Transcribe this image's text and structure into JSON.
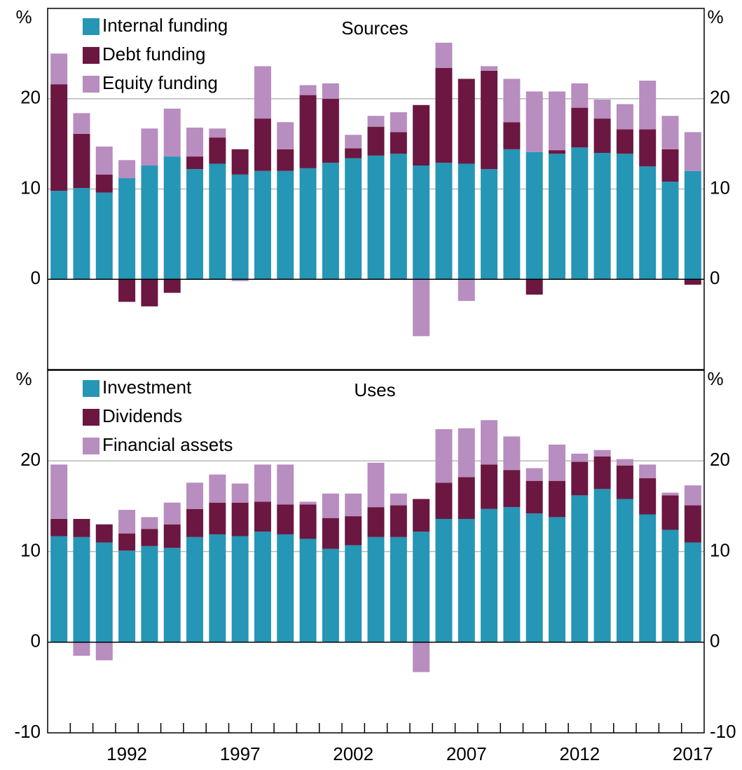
{
  "chart_data": [
    {
      "type": "bar",
      "stacked": true,
      "title": "Sources",
      "y_label": "%",
      "ylim": [
        -10,
        30
      ],
      "yticks": [
        0,
        10,
        20
      ],
      "grid": true,
      "legend": "top-left",
      "series": [
        {
          "name": "Internal funding",
          "color": "#2596b5",
          "values": [
            9.8,
            10.1,
            9.6,
            11.2,
            12.6,
            13.6,
            12.2,
            12.8,
            11.6,
            12.0,
            12.0,
            12.3,
            12.9,
            13.4,
            13.7,
            13.9,
            12.6,
            12.9,
            12.8,
            12.2,
            14.4,
            14.1,
            13.9,
            14.6,
            14.0,
            13.9,
            12.5,
            10.8,
            12.0
          ]
        },
        {
          "name": "Debt funding",
          "color": "#6b1741",
          "values": [
            11.8,
            6.0,
            2.0,
            -2.5,
            -3.0,
            -1.5,
            1.4,
            2.9,
            2.8,
            5.8,
            2.4,
            8.1,
            7.1,
            1.1,
            3.2,
            2.4,
            6.7,
            10.5,
            9.4,
            10.9,
            3.0,
            -1.7,
            0.4,
            4.4,
            3.8,
            2.7,
            4.1,
            3.6,
            -0.6
          ]
        },
        {
          "name": "Equity funding",
          "color": "#b88dbf",
          "values": [
            3.4,
            2.3,
            3.1,
            2.0,
            4.1,
            5.3,
            3.2,
            1.0,
            -0.2,
            5.8,
            3.0,
            1.1,
            1.7,
            1.5,
            1.2,
            2.2,
            -6.3,
            2.8,
            -2.4,
            0.5,
            4.8,
            6.7,
            6.5,
            2.7,
            2.1,
            2.8,
            5.4,
            3.7,
            4.3
          ]
        }
      ]
    },
    {
      "type": "bar",
      "stacked": true,
      "title": "Uses",
      "y_label": "%",
      "ylim": [
        -10,
        30
      ],
      "yticks": [
        -10,
        0,
        10,
        20
      ],
      "grid": true,
      "legend": "top-left",
      "categories": [
        null,
        null,
        null,
        "1992",
        null,
        null,
        null,
        null,
        "1997",
        null,
        null,
        null,
        null,
        "2002",
        null,
        null,
        null,
        null,
        "2007",
        null,
        null,
        null,
        null,
        "2012",
        null,
        null,
        null,
        null,
        "2017"
      ],
      "series": [
        {
          "name": "Investment",
          "color": "#2596b5",
          "values": [
            11.7,
            11.6,
            11.0,
            10.1,
            10.6,
            10.4,
            11.6,
            11.9,
            11.7,
            12.2,
            11.9,
            11.4,
            10.3,
            10.7,
            11.6,
            11.6,
            12.2,
            13.6,
            13.6,
            14.7,
            14.9,
            14.2,
            13.8,
            16.2,
            16.9,
            15.8,
            14.1,
            12.4,
            11.0
          ]
        },
        {
          "name": "Dividends",
          "color": "#6b1741",
          "values": [
            1.9,
            2.0,
            2.0,
            1.9,
            1.9,
            2.6,
            3.1,
            3.5,
            3.7,
            3.3,
            3.3,
            3.8,
            3.4,
            3.2,
            3.3,
            3.5,
            3.6,
            4.0,
            4.6,
            4.9,
            4.1,
            3.6,
            4.0,
            3.7,
            3.6,
            3.7,
            4.0,
            3.8,
            4.1
          ]
        },
        {
          "name": "Financial assets",
          "color": "#b88dbf",
          "values": [
            6.0,
            -1.5,
            -2.0,
            2.6,
            1.3,
            2.4,
            2.9,
            3.1,
            2.1,
            4.1,
            4.4,
            0.3,
            2.7,
            2.5,
            4.9,
            1.3,
            -3.3,
            5.9,
            5.4,
            4.9,
            3.7,
            1.4,
            4.0,
            0.9,
            0.7,
            0.7,
            1.5,
            0.3,
            2.2
          ]
        }
      ]
    }
  ]
}
